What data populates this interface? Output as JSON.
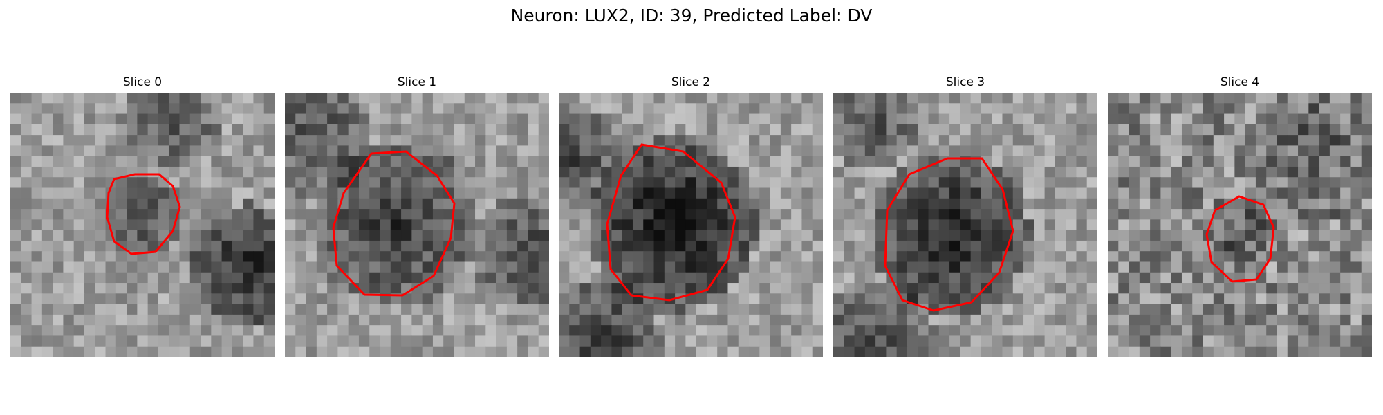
{
  "figure": {
    "title": "Neuron: LUX2, ID: 39, Predicted Label: DV",
    "contour_color": "#ff0000"
  },
  "slices": [
    {
      "title": "Slice 0"
    },
    {
      "title": "Slice 1"
    },
    {
      "title": "Slice 2"
    },
    {
      "title": "Slice 3"
    },
    {
      "title": "Slice 4"
    }
  ]
}
